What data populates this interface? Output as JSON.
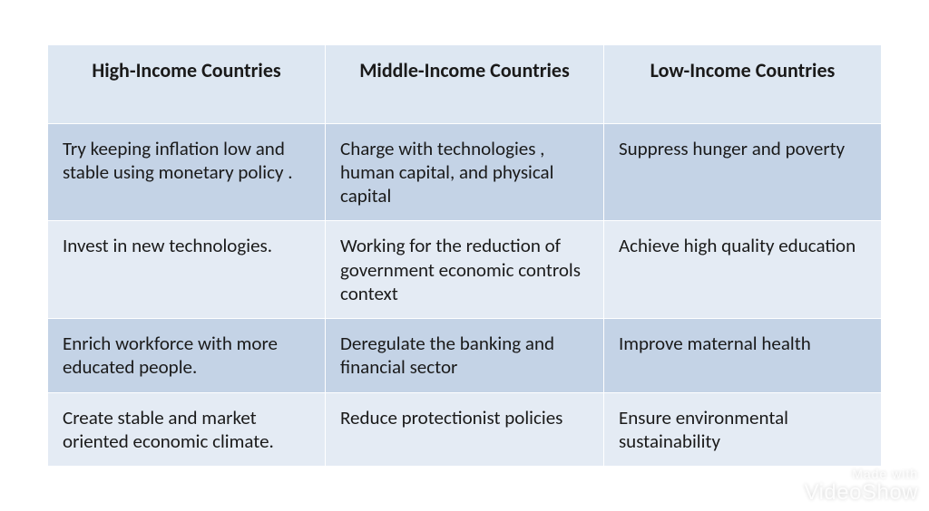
{
  "table": {
    "type": "table",
    "columns": [
      "High-Income Countries",
      "Middle-Income Countries",
      "Low-Income Countries"
    ],
    "rows": [
      [
        "Try keeping inflation low and stable using monetary policy .",
        "Charge with technologies , human capital, and physical capital",
        "Suppress hunger and poverty"
      ],
      [
        "Invest in new technologies.",
        "Working for the reduction of government economic controls context",
        "Achieve high quality education"
      ],
      [
        "Enrich workforce with more educated people.",
        "Deregulate the  banking and financial sector",
        "Improve maternal health"
      ],
      [
        "Create stable and market oriented economic climate.",
        "Reduce protectionist policies",
        "Ensure environmental sustainability"
      ]
    ],
    "header_bg": "#dde7f2",
    "row_bg_odd": "#c4d3e6",
    "row_bg_even": "#e4ebf4",
    "border_color": "#ffffff",
    "text_color": "#1a1a1a",
    "header_fontsize": 22,
    "cell_fontsize": 21,
    "col_widths_pct": [
      33.3,
      33.4,
      33.3
    ]
  },
  "watermark": {
    "line1": "Made with",
    "line2": "VideoShow"
  }
}
